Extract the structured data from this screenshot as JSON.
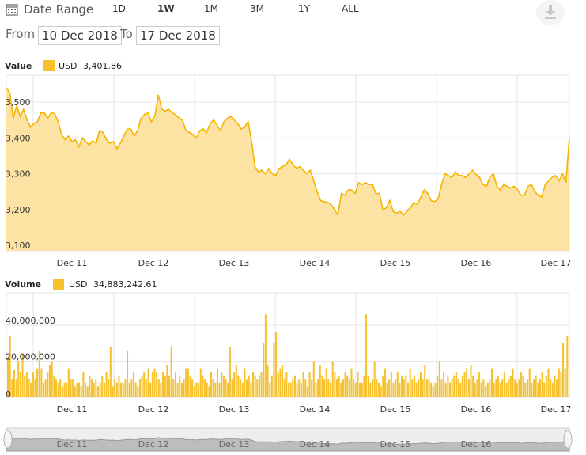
{
  "toolbar": {
    "title": "Date Range",
    "ranges": [
      "1D",
      "1W",
      "1M",
      "3M",
      "1Y",
      "ALL"
    ],
    "active_range": "1W",
    "from_label": "From",
    "from_value": "10 Dec 2018",
    "to_label": "To",
    "to_value": "17 Dec 2018"
  },
  "chart_data": [
    {
      "type": "area",
      "legend_label": "Value",
      "series": [
        {
          "name": "USD",
          "last": "3,401.86"
        }
      ],
      "color": "#f6c12c",
      "x_ticks": [
        "Dec 11",
        "Dec 12",
        "Dec 13",
        "Dec 14",
        "Dec 15",
        "Dec 16",
        "Dec 17"
      ],
      "y_ticks": [
        "3,500",
        "3,400",
        "3,300",
        "3,200",
        "3,100"
      ],
      "y_tick_values": [
        3500,
        3400,
        3300,
        3200,
        3100
      ],
      "ylim": [
        3085,
        3575
      ],
      "values": [
        3540,
        3525,
        3455,
        3490,
        3460,
        3480,
        3450,
        3430,
        3440,
        3445,
        3470,
        3470,
        3455,
        3470,
        3468,
        3445,
        3410,
        3395,
        3405,
        3390,
        3395,
        3375,
        3400,
        3390,
        3380,
        3392,
        3385,
        3420,
        3415,
        3395,
        3385,
        3390,
        3370,
        3385,
        3405,
        3425,
        3425,
        3405,
        3420,
        3455,
        3465,
        3470,
        3445,
        3460,
        3520,
        3480,
        3475,
        3480,
        3470,
        3465,
        3455,
        3450,
        3420,
        3415,
        3410,
        3400,
        3420,
        3425,
        3415,
        3440,
        3450,
        3435,
        3420,
        3445,
        3455,
        3460,
        3450,
        3440,
        3425,
        3430,
        3445,
        3390,
        3320,
        3305,
        3310,
        3300,
        3315,
        3300,
        3295,
        3315,
        3320,
        3325,
        3340,
        3325,
        3315,
        3320,
        3310,
        3300,
        3310,
        3280,
        3250,
        3225,
        3222,
        3220,
        3215,
        3200,
        3185,
        3245,
        3240,
        3255,
        3255,
        3245,
        3275,
        3270,
        3275,
        3270,
        3270,
        3245,
        3245,
        3200,
        3205,
        3225,
        3195,
        3190,
        3195,
        3185,
        3195,
        3205,
        3220,
        3215,
        3235,
        3255,
        3245,
        3225,
        3222,
        3230,
        3270,
        3300,
        3295,
        3290,
        3305,
        3295,
        3295,
        3290,
        3300,
        3310,
        3298,
        3290,
        3270,
        3265,
        3290,
        3300,
        3265,
        3255,
        3270,
        3265,
        3260,
        3265,
        3255,
        3240,
        3240,
        3265,
        3270,
        3250,
        3240,
        3235,
        3270,
        3280,
        3290,
        3295,
        3280,
        3300,
        3275,
        3402
      ],
      "grid": true
    },
    {
      "type": "bar",
      "legend_label": "Volume",
      "series": [
        {
          "name": "USD",
          "last": "34,883,242.61"
        }
      ],
      "color": "#f6c12c",
      "x_ticks": [
        "Dec 11",
        "Dec 12",
        "Dec 13",
        "Dec 14",
        "Dec 15",
        "Dec 16",
        "Dec 17"
      ],
      "y_ticks": [
        "40,000,000",
        "20,000,000",
        "0"
      ],
      "y_tick_values": [
        40000000,
        20000000,
        0
      ],
      "ylim": [
        0,
        58000000
      ],
      "values_millions": [
        22,
        34,
        10,
        15,
        10,
        20,
        14,
        24,
        12,
        14,
        10,
        8,
        14,
        10,
        16,
        26,
        16,
        8,
        10,
        14,
        18,
        20,
        12,
        10,
        8,
        10,
        6,
        8,
        8,
        16,
        10,
        10,
        6,
        8,
        8,
        6,
        14,
        8,
        6,
        12,
        10,
        8,
        10,
        6,
        8,
        12,
        8,
        14,
        10,
        28,
        6,
        10,
        8,
        12,
        8,
        8,
        10,
        26,
        8,
        10,
        14,
        8,
        6,
        10,
        12,
        14,
        10,
        16,
        8,
        14,
        16,
        14,
        10,
        8,
        14,
        12,
        18,
        12,
        28,
        10,
        14,
        8,
        12,
        8,
        10,
        16,
        16,
        12,
        10,
        6,
        8,
        8,
        16,
        12,
        10,
        8,
        6,
        14,
        10,
        8,
        16,
        8,
        14,
        12,
        10,
        8,
        28,
        10,
        14,
        18,
        12,
        10,
        8,
        16,
        10,
        12,
        8,
        14,
        12,
        10,
        12,
        14,
        30,
        46,
        18,
        8,
        12,
        30,
        36,
        14,
        16,
        18,
        10,
        14,
        8,
        8,
        10,
        12,
        8,
        10,
        8,
        14,
        10,
        6,
        14,
        10,
        20,
        8,
        10,
        18,
        12,
        10,
        16,
        10,
        8,
        20,
        14,
        10,
        12,
        8,
        10,
        14,
        12,
        10,
        16,
        10,
        8,
        14,
        8,
        8,
        12,
        46,
        12,
        8,
        10,
        20,
        10,
        8,
        6,
        12,
        16,
        8,
        10,
        14,
        8,
        10,
        14,
        8,
        12,
        10,
        12,
        8,
        16,
        10,
        12,
        8,
        10,
        14,
        10,
        18,
        10,
        10,
        8,
        6,
        8,
        12,
        20,
        10,
        14,
        8,
        12,
        8,
        10,
        12,
        14,
        10,
        8,
        12,
        14,
        16,
        10,
        18,
        12,
        8,
        10,
        14,
        8,
        10,
        6,
        8,
        10,
        16,
        8,
        10,
        12,
        8,
        10,
        14,
        8,
        10,
        12,
        16,
        10,
        8,
        10,
        14,
        12,
        8,
        10,
        16,
        8,
        10,
        12,
        8,
        10,
        14,
        8,
        12,
        16,
        10,
        8,
        12,
        10,
        16,
        14,
        30,
        16,
        34
      ]
    }
  ],
  "navigator": {
    "labels": [
      "Dec 11",
      "Dec 12",
      "Dec 13",
      "Dec 14",
      "Dec 15",
      "Dec 16",
      "Dec 17"
    ]
  }
}
